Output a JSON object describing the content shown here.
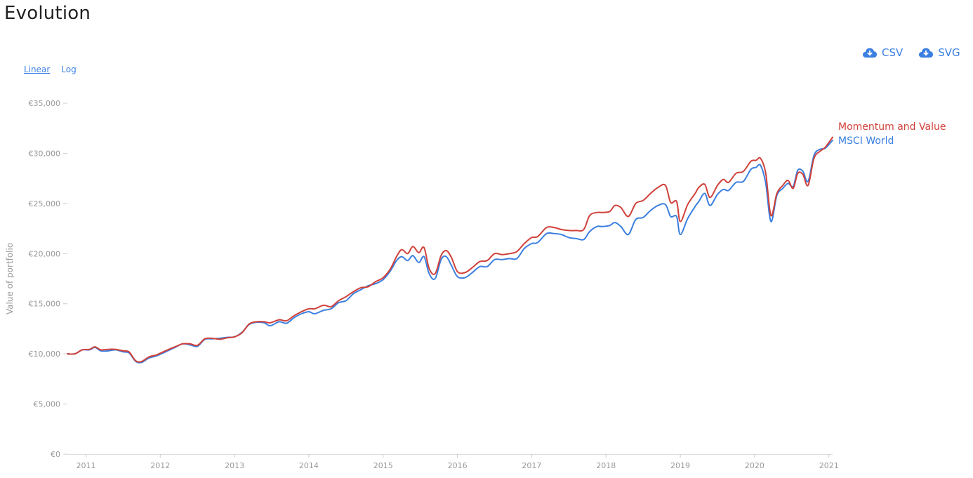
{
  "page": {
    "title": "Evolution"
  },
  "downloads": [
    {
      "label": "CSV",
      "icon": "cloud-download-icon"
    },
    {
      "label": "SVG",
      "icon": "cloud-download-icon"
    }
  ],
  "scale_toggle": {
    "linear_label": "Linear",
    "log_label": "Log",
    "active": "Linear"
  },
  "colors": {
    "accent": "#3b7fe0",
    "series_a": "#d0413a",
    "series_b": "#3b7fe0"
  },
  "chart_data": {
    "type": "line",
    "ylabel": "Value of portfolio",
    "ylim": [
      0,
      35000
    ],
    "yticks": [
      0,
      5000,
      10000,
      15000,
      20000,
      25000,
      30000,
      35000
    ],
    "ytick_labels": [
      "€0",
      "€5,000",
      "€10,000",
      "€15,000",
      "€20,000",
      "€25,000",
      "€30,000",
      "€35,000"
    ],
    "xlim": [
      2010.75,
      2021.05
    ],
    "xticks": [
      2011,
      2012,
      2013,
      2014,
      2015,
      2016,
      2017,
      2018,
      2019,
      2020,
      2021
    ],
    "xtick_labels": [
      "2011",
      "2012",
      "2013",
      "2014",
      "2015",
      "2016",
      "2017",
      "2018",
      "2019",
      "2020",
      "2021"
    ],
    "grid": false,
    "legend": "right",
    "series": [
      {
        "name": "Momentum and Value",
        "color": "#d0413a",
        "x": [
          2010.75,
          2010.85,
          2010.95,
          2011.05,
          2011.12,
          2011.2,
          2011.3,
          2011.4,
          2011.5,
          2011.58,
          2011.67,
          2011.75,
          2011.85,
          2011.95,
          2012.1,
          2012.2,
          2012.3,
          2012.4,
          2012.5,
          2012.6,
          2012.7,
          2012.8,
          2012.9,
          2013.0,
          2013.1,
          2013.2,
          2013.3,
          2013.4,
          2013.48,
          2013.6,
          2013.7,
          2013.8,
          2013.9,
          2014.0,
          2014.08,
          2014.2,
          2014.3,
          2014.4,
          2014.5,
          2014.6,
          2014.7,
          2014.8,
          2014.9,
          2015.0,
          2015.1,
          2015.18,
          2015.25,
          2015.33,
          2015.4,
          2015.48,
          2015.55,
          2015.62,
          2015.7,
          2015.78,
          2015.85,
          2015.92,
          2016.0,
          2016.1,
          2016.2,
          2016.3,
          2016.4,
          2016.5,
          2016.6,
          2016.7,
          2016.8,
          2016.9,
          2017.0,
          2017.08,
          2017.2,
          2017.3,
          2017.4,
          2017.5,
          2017.6,
          2017.7,
          2017.78,
          2017.88,
          2017.95,
          2018.05,
          2018.12,
          2018.2,
          2018.3,
          2018.4,
          2018.5,
          2018.6,
          2018.7,
          2018.8,
          2018.87,
          2018.95,
          2019.0,
          2019.1,
          2019.2,
          2019.25,
          2019.33,
          2019.4,
          2019.5,
          2019.58,
          2019.65,
          2019.75,
          2019.85,
          2019.95,
          2020.02,
          2020.08,
          2020.15,
          2020.22,
          2020.3,
          2020.38,
          2020.45,
          2020.52,
          2020.58,
          2020.65,
          2020.72,
          2020.8,
          2020.88,
          2020.95,
          2021.05
        ],
        "y": [
          10000,
          10000,
          10400,
          10450,
          10700,
          10400,
          10450,
          10450,
          10300,
          10200,
          9300,
          9250,
          9700,
          9900,
          10400,
          10700,
          11000,
          11000,
          10850,
          11500,
          11550,
          11450,
          11600,
          11700,
          12100,
          13000,
          13200,
          13200,
          13100,
          13400,
          13300,
          13800,
          14200,
          14500,
          14500,
          14850,
          14700,
          15300,
          15700,
          16200,
          16600,
          16700,
          17200,
          17600,
          18500,
          19700,
          20400,
          20000,
          20700,
          20100,
          20600,
          18500,
          18000,
          19800,
          20300,
          19600,
          18200,
          18100,
          18600,
          19200,
          19300,
          20000,
          19900,
          20000,
          20200,
          21000,
          21600,
          21700,
          22600,
          22600,
          22400,
          22300,
          22300,
          22400,
          23800,
          24100,
          24100,
          24200,
          24800,
          24600,
          23700,
          25000,
          25300,
          26000,
          26600,
          26800,
          25100,
          25200,
          23200,
          24900,
          26000,
          26600,
          26900,
          25600,
          26800,
          27400,
          27100,
          28000,
          28200,
          29200,
          29300,
          29500,
          28000,
          23800,
          26000,
          26800,
          27300,
          26500,
          28000,
          27900,
          26800,
          29500,
          30200,
          30600,
          31600
        ]
      },
      {
        "name": "MSCI World",
        "color": "#3b7fe0",
        "x": [
          2010.75,
          2010.85,
          2010.95,
          2011.05,
          2011.12,
          2011.2,
          2011.3,
          2011.4,
          2011.5,
          2011.58,
          2011.67,
          2011.75,
          2011.85,
          2011.95,
          2012.1,
          2012.2,
          2012.3,
          2012.4,
          2012.5,
          2012.6,
          2012.7,
          2012.8,
          2012.9,
          2013.0,
          2013.1,
          2013.2,
          2013.3,
          2013.4,
          2013.48,
          2013.6,
          2013.7,
          2013.8,
          2013.9,
          2014.0,
          2014.08,
          2014.2,
          2014.3,
          2014.4,
          2014.5,
          2014.6,
          2014.7,
          2014.8,
          2014.9,
          2015.0,
          2015.1,
          2015.18,
          2015.25,
          2015.33,
          2015.4,
          2015.48,
          2015.55,
          2015.62,
          2015.7,
          2015.78,
          2015.85,
          2015.92,
          2016.0,
          2016.1,
          2016.2,
          2016.3,
          2016.4,
          2016.5,
          2016.6,
          2016.7,
          2016.8,
          2016.9,
          2017.0,
          2017.08,
          2017.2,
          2017.3,
          2017.4,
          2017.5,
          2017.6,
          2017.7,
          2017.78,
          2017.88,
          2017.95,
          2018.05,
          2018.12,
          2018.2,
          2018.3,
          2018.4,
          2018.5,
          2018.6,
          2018.7,
          2018.8,
          2018.87,
          2018.95,
          2019.0,
          2019.1,
          2019.2,
          2019.25,
          2019.33,
          2019.4,
          2019.5,
          2019.58,
          2019.65,
          2019.75,
          2019.85,
          2019.95,
          2020.02,
          2020.08,
          2020.15,
          2020.22,
          2020.3,
          2020.38,
          2020.45,
          2020.52,
          2020.58,
          2020.65,
          2020.72,
          2020.8,
          2020.88,
          2020.95,
          2021.05
        ],
        "y": [
          10000,
          10000,
          10400,
          10400,
          10650,
          10300,
          10300,
          10400,
          10200,
          10100,
          9250,
          9150,
          9600,
          9800,
          10300,
          10650,
          11000,
          10900,
          10750,
          11450,
          11500,
          11550,
          11650,
          11700,
          12150,
          12950,
          13150,
          13100,
          12800,
          13200,
          13050,
          13600,
          14000,
          14200,
          14000,
          14350,
          14500,
          15100,
          15300,
          16000,
          16400,
          16800,
          17000,
          17400,
          18300,
          19300,
          19700,
          19300,
          19800,
          19100,
          19700,
          18000,
          17500,
          19400,
          19700,
          18800,
          17700,
          17600,
          18100,
          18700,
          18700,
          19400,
          19400,
          19500,
          19500,
          20500,
          21000,
          21100,
          22000,
          22000,
          21900,
          21600,
          21500,
          21400,
          22200,
          22700,
          22700,
          22800,
          23100,
          22700,
          21900,
          23400,
          23600,
          24300,
          24800,
          24900,
          23700,
          23700,
          21900,
          23500,
          24700,
          25200,
          26000,
          24800,
          25900,
          26400,
          26300,
          27100,
          27200,
          28400,
          28600,
          28800,
          27000,
          23200,
          25800,
          26500,
          27000,
          26700,
          28300,
          28200,
          27200,
          29800,
          30400,
          30500,
          31300
        ]
      }
    ]
  }
}
